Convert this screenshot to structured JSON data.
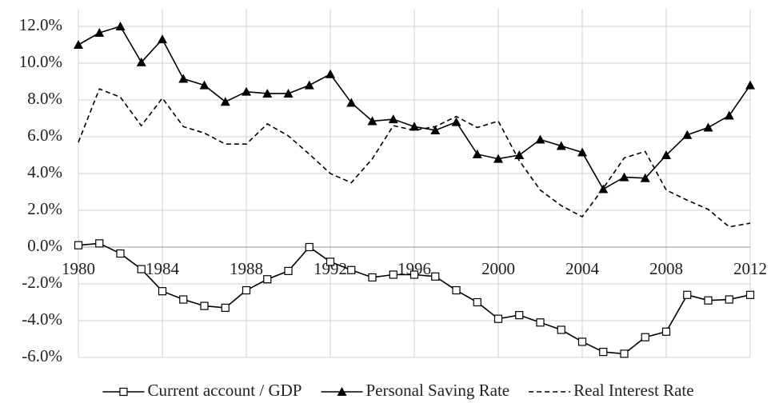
{
  "chart_data": {
    "type": "line",
    "x": [
      1980,
      1981,
      1982,
      1983,
      1984,
      1985,
      1986,
      1987,
      1988,
      1989,
      1990,
      1991,
      1992,
      1993,
      1994,
      1995,
      1996,
      1997,
      1998,
      1999,
      2000,
      2001,
      2002,
      2003,
      2004,
      2005,
      2006,
      2007,
      2008,
      2009,
      2010,
      2011,
      2012
    ],
    "xlim": [
      1980,
      2012
    ],
    "xticks": [
      1980,
      1984,
      1988,
      1992,
      1996,
      2000,
      2004,
      2008,
      2012
    ],
    "ylim": [
      -6,
      12
    ],
    "yticks": [
      {
        "value": -6,
        "label": "-6.0%"
      },
      {
        "value": -4,
        "label": "-4.0%"
      },
      {
        "value": -2,
        "label": "-2.0%"
      },
      {
        "value": 0,
        "label": "0.0%"
      },
      {
        "value": 2,
        "label": "2.0%"
      },
      {
        "value": 4,
        "label": "4.0%"
      },
      {
        "value": 6,
        "label": "6.0%"
      },
      {
        "value": 8,
        "label": "8.0%"
      },
      {
        "value": 10,
        "label": "10.0%"
      },
      {
        "value": 12,
        "label": "12.0%"
      }
    ],
    "grid": true,
    "legend": "bottom",
    "series": [
      {
        "name": "Current account / GDP",
        "color": "#000000",
        "marker": "square",
        "dashed": false,
        "values": [
          0.1,
          0.2,
          -0.35,
          -1.2,
          -2.4,
          -2.85,
          -3.2,
          -3.3,
          -2.35,
          -1.75,
          -1.3,
          0.0,
          -0.8,
          -1.25,
          -1.65,
          -1.5,
          -1.5,
          -1.6,
          -2.35,
          -3.0,
          -3.9,
          -3.7,
          -4.1,
          -4.5,
          -5.15,
          -5.7,
          -5.8,
          -4.9,
          -4.6,
          -2.6,
          -2.9,
          -2.85,
          -2.6
        ]
      },
      {
        "name": "Personal Saving Rate",
        "color": "#000000",
        "marker": "triangle",
        "dashed": false,
        "values": [
          11.0,
          11.65,
          12.0,
          10.05,
          11.3,
          9.15,
          8.8,
          7.9,
          8.45,
          8.35,
          8.35,
          8.8,
          9.4,
          7.85,
          6.85,
          6.95,
          6.55,
          6.35,
          6.8,
          5.05,
          4.8,
          5.0,
          5.85,
          5.5,
          5.15,
          3.15,
          3.8,
          3.75,
          5.0,
          6.1,
          6.5,
          7.15,
          8.8
        ]
      },
      {
        "name": "Real Interest Rate",
        "color": "#000000",
        "marker": "none",
        "dashed": true,
        "values": [
          5.7,
          8.6,
          8.15,
          6.6,
          8.1,
          6.55,
          6.2,
          5.6,
          5.6,
          6.7,
          6.05,
          5.05,
          4.0,
          3.5,
          4.8,
          6.6,
          6.35,
          6.55,
          7.1,
          6.5,
          6.85,
          4.7,
          3.1,
          2.25,
          1.65,
          3.2,
          4.85,
          5.2,
          3.1,
          2.55,
          2.05,
          1.1,
          1.3
        ]
      }
    ]
  }
}
